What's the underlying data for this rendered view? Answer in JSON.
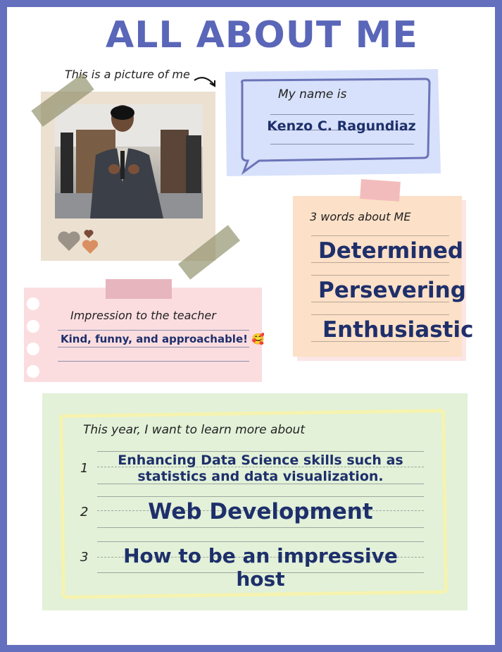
{
  "title": "ALL ABOUT ME",
  "picture": {
    "label": "This is a picture of me",
    "photo_alt": "Portrait of a man in a dark suit in an office"
  },
  "name": {
    "label": "My name is",
    "value": "Kenzo C. Ragundiaz"
  },
  "words": {
    "label": "3 words about ME",
    "items": [
      "Determined",
      "Persevering",
      "Enthusiastic"
    ]
  },
  "impression": {
    "label": "Impression to the teacher",
    "value": "Kind, funny, and approachable! 🥰"
  },
  "learn": {
    "label": "This year, I want to learn more about",
    "items": [
      {
        "num": "1",
        "text": "Enhancing Data Science skills such as statistics and data visualization."
      },
      {
        "num": "2",
        "text": "Web Development"
      },
      {
        "num": "3",
        "text": "How to be an impressive host"
      }
    ]
  },
  "colors": {
    "border": "#6470bd",
    "title": "#5a66b8",
    "text_bold": "#1e2f6b",
    "name_card": "#d7e1fb",
    "words_card": "#fce0c7",
    "impression_card": "#fbdde0",
    "learn_card": "#e2f1d8"
  }
}
